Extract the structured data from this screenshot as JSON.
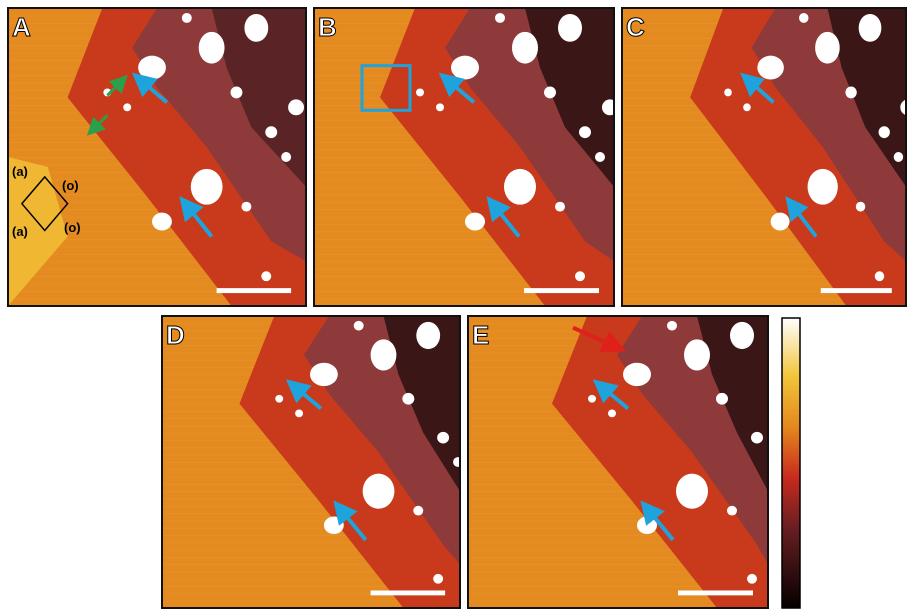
{
  "panels": [
    {
      "label": "A"
    },
    {
      "label": "B"
    },
    {
      "label": "C"
    },
    {
      "label": "D"
    },
    {
      "label": "E"
    }
  ],
  "annotations": [
    "(a)",
    "(o)",
    "(a)",
    "(o)"
  ]
}
